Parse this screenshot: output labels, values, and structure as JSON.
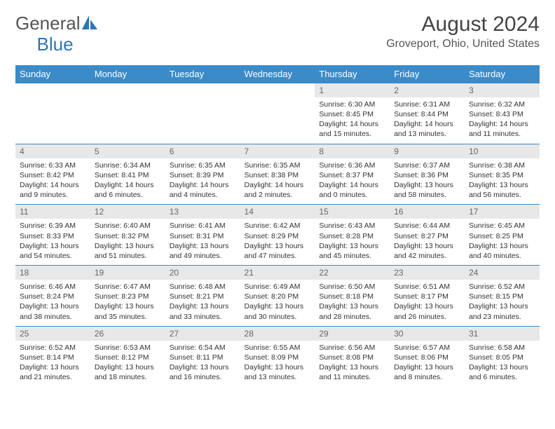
{
  "logo": {
    "text1": "General",
    "text2": "Blue"
  },
  "title": "August 2024",
  "location": "Groveport, Ohio, United States",
  "colors": {
    "header_bg": "#3b8bc9",
    "header_fg": "#ffffff",
    "daynum_bg": "#e8e8e8",
    "daynum_fg": "#666666",
    "border": "#3b8bc9",
    "logo_blue": "#2e75b6",
    "text": "#333333"
  },
  "weekdays": [
    "Sunday",
    "Monday",
    "Tuesday",
    "Wednesday",
    "Thursday",
    "Friday",
    "Saturday"
  ],
  "weeks": [
    [
      null,
      null,
      null,
      null,
      {
        "n": "1",
        "sr": "6:30 AM",
        "ss": "8:45 PM",
        "dl": "14 hours and 15 minutes."
      },
      {
        "n": "2",
        "sr": "6:31 AM",
        "ss": "8:44 PM",
        "dl": "14 hours and 13 minutes."
      },
      {
        "n": "3",
        "sr": "6:32 AM",
        "ss": "8:43 PM",
        "dl": "14 hours and 11 minutes."
      }
    ],
    [
      {
        "n": "4",
        "sr": "6:33 AM",
        "ss": "8:42 PM",
        "dl": "14 hours and 9 minutes."
      },
      {
        "n": "5",
        "sr": "6:34 AM",
        "ss": "8:41 PM",
        "dl": "14 hours and 6 minutes."
      },
      {
        "n": "6",
        "sr": "6:35 AM",
        "ss": "8:39 PM",
        "dl": "14 hours and 4 minutes."
      },
      {
        "n": "7",
        "sr": "6:35 AM",
        "ss": "8:38 PM",
        "dl": "14 hours and 2 minutes."
      },
      {
        "n": "8",
        "sr": "6:36 AM",
        "ss": "8:37 PM",
        "dl": "14 hours and 0 minutes."
      },
      {
        "n": "9",
        "sr": "6:37 AM",
        "ss": "8:36 PM",
        "dl": "13 hours and 58 minutes."
      },
      {
        "n": "10",
        "sr": "6:38 AM",
        "ss": "8:35 PM",
        "dl": "13 hours and 56 minutes."
      }
    ],
    [
      {
        "n": "11",
        "sr": "6:39 AM",
        "ss": "8:33 PM",
        "dl": "13 hours and 54 minutes."
      },
      {
        "n": "12",
        "sr": "6:40 AM",
        "ss": "8:32 PM",
        "dl": "13 hours and 51 minutes."
      },
      {
        "n": "13",
        "sr": "6:41 AM",
        "ss": "8:31 PM",
        "dl": "13 hours and 49 minutes."
      },
      {
        "n": "14",
        "sr": "6:42 AM",
        "ss": "8:29 PM",
        "dl": "13 hours and 47 minutes."
      },
      {
        "n": "15",
        "sr": "6:43 AM",
        "ss": "8:28 PM",
        "dl": "13 hours and 45 minutes."
      },
      {
        "n": "16",
        "sr": "6:44 AM",
        "ss": "8:27 PM",
        "dl": "13 hours and 42 minutes."
      },
      {
        "n": "17",
        "sr": "6:45 AM",
        "ss": "8:25 PM",
        "dl": "13 hours and 40 minutes."
      }
    ],
    [
      {
        "n": "18",
        "sr": "6:46 AM",
        "ss": "8:24 PM",
        "dl": "13 hours and 38 minutes."
      },
      {
        "n": "19",
        "sr": "6:47 AM",
        "ss": "8:23 PM",
        "dl": "13 hours and 35 minutes."
      },
      {
        "n": "20",
        "sr": "6:48 AM",
        "ss": "8:21 PM",
        "dl": "13 hours and 33 minutes."
      },
      {
        "n": "21",
        "sr": "6:49 AM",
        "ss": "8:20 PM",
        "dl": "13 hours and 30 minutes."
      },
      {
        "n": "22",
        "sr": "6:50 AM",
        "ss": "8:18 PM",
        "dl": "13 hours and 28 minutes."
      },
      {
        "n": "23",
        "sr": "6:51 AM",
        "ss": "8:17 PM",
        "dl": "13 hours and 26 minutes."
      },
      {
        "n": "24",
        "sr": "6:52 AM",
        "ss": "8:15 PM",
        "dl": "13 hours and 23 minutes."
      }
    ],
    [
      {
        "n": "25",
        "sr": "6:52 AM",
        "ss": "8:14 PM",
        "dl": "13 hours and 21 minutes."
      },
      {
        "n": "26",
        "sr": "6:53 AM",
        "ss": "8:12 PM",
        "dl": "13 hours and 18 minutes."
      },
      {
        "n": "27",
        "sr": "6:54 AM",
        "ss": "8:11 PM",
        "dl": "13 hours and 16 minutes."
      },
      {
        "n": "28",
        "sr": "6:55 AM",
        "ss": "8:09 PM",
        "dl": "13 hours and 13 minutes."
      },
      {
        "n": "29",
        "sr": "6:56 AM",
        "ss": "8:08 PM",
        "dl": "13 hours and 11 minutes."
      },
      {
        "n": "30",
        "sr": "6:57 AM",
        "ss": "8:06 PM",
        "dl": "13 hours and 8 minutes."
      },
      {
        "n": "31",
        "sr": "6:58 AM",
        "ss": "8:05 PM",
        "dl": "13 hours and 6 minutes."
      }
    ]
  ],
  "labels": {
    "sunrise": "Sunrise:",
    "sunset": "Sunset:",
    "daylight": "Daylight:"
  }
}
